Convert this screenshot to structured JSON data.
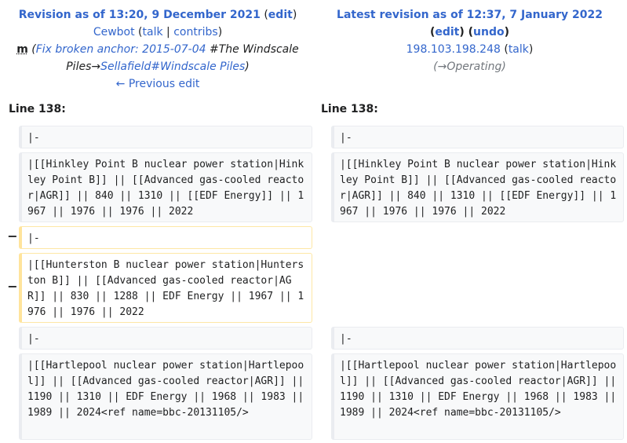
{
  "left": {
    "title": "Revision as of 13:20, 9 December 2021",
    "edit": "edit",
    "user": "Cewbot",
    "talk": "talk",
    "contribs": "contribs",
    "minor": "m",
    "summary_link": "Fix broken anchor: 2015-07-04",
    "summary_section": "#The Windscale Piles",
    "summary_arrow": "→",
    "summary_target": "Sellafield#Windscale Piles",
    "prev": "← Previous edit"
  },
  "right": {
    "title": "Latest revision as of 12:37, 7 January 2022",
    "edit": "edit",
    "undo": "undo",
    "user": "198.103.198.248",
    "talk": "talk",
    "summary_arrow": "→",
    "summary_section": "Operating"
  },
  "line_label": "Line 138:",
  "rows": {
    "sep": "|-",
    "hinkley": "|[[Hinkley Point B nuclear power station|Hinkley Point B]] || [[Advanced gas-cooled reactor|AGR]] || 840 || 1310 || [[EDF Energy]] || 1967 || 1976 || 1976 || 2022",
    "hunterston": "|[[Hunterston B nuclear power station|Hunterston B]] || [[Advanced gas-cooled reactor|AGR]] || 830 || 1288 || EDF Energy || 1967 || 1976 || 1976 || 2022",
    "hartlepool": "|[[Hartlepool nuclear power station|Hartlepool]] || [[Advanced gas-cooled reactor|AGR]] || 1190 || 1310 || EDF Energy || 1968 || 1983 || 1989 || 2024<ref name=bbc-20131105/>",
    "minus": "−"
  }
}
